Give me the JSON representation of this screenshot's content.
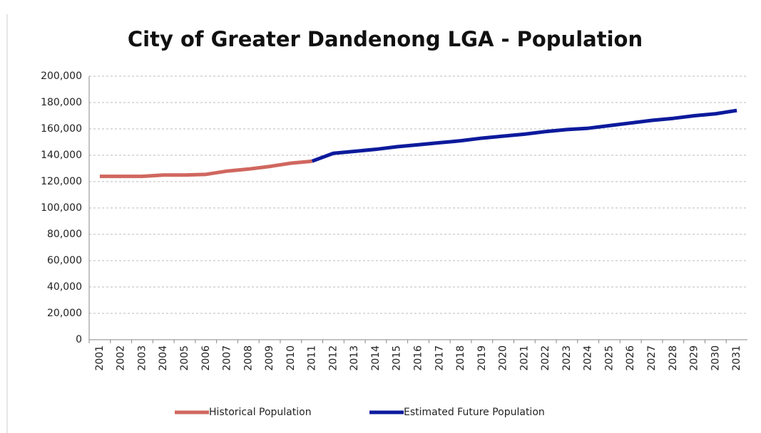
{
  "chart_data": {
    "type": "line",
    "title": "City of Greater Dandenong LGA - Population",
    "categories": [
      "2001",
      "2002",
      "2003",
      "2004",
      "2005",
      "2006",
      "2007",
      "2008",
      "2009",
      "2010",
      "2011",
      "2012",
      "2013",
      "2014",
      "2015",
      "2016",
      "2017",
      "2018",
      "2019",
      "2020",
      "2021",
      "2022",
      "2023",
      "2024",
      "2025",
      "2026",
      "2027",
      "2028",
      "2029",
      "2030",
      "2031"
    ],
    "series": [
      {
        "name": "Historical Population",
        "color": "#d0675f",
        "values": [
          124000,
          124000,
          124000,
          125000,
          125000,
          125500,
          128000,
          129500,
          131500,
          134000,
          135500,
          null,
          null,
          null,
          null,
          null,
          null,
          null,
          null,
          null,
          null,
          null,
          null,
          null,
          null,
          null,
          null,
          null,
          null,
          null,
          null
        ]
      },
      {
        "name": "Estimated Future Population",
        "color": "#0c1a9c",
        "values": [
          null,
          null,
          null,
          null,
          null,
          null,
          null,
          null,
          null,
          null,
          135500,
          141500,
          143000,
          144500,
          146500,
          148000,
          149500,
          151000,
          153000,
          154500,
          156000,
          158000,
          159500,
          160500,
          162500,
          164500,
          166500,
          168000,
          170000,
          171500,
          174000
        ]
      }
    ],
    "ylim": [
      0,
      200000
    ],
    "yticks": [
      0,
      {
        "value": 20000,
        "label": "20,000"
      },
      {
        "value": 40000,
        "label": "40,000"
      },
      {
        "value": 60000,
        "label": "60,000"
      },
      {
        "value": 80000,
        "label": "80,000"
      },
      {
        "value": 100000,
        "label": "100,000"
      },
      {
        "value": 120000,
        "label": "120,000"
      },
      {
        "value": 140000,
        "label": "140,000"
      },
      {
        "value": 160000,
        "label": "160,000"
      },
      {
        "value": 180000,
        "label": "180,000"
      },
      {
        "value": 200000,
        "label": "200,000"
      }
    ],
    "grid": true,
    "legend": "bottom"
  }
}
